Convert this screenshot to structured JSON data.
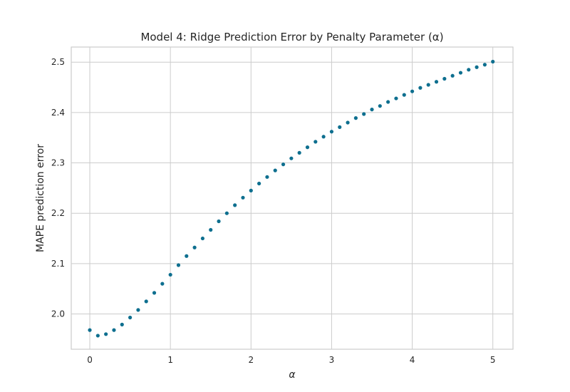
{
  "chart_data": {
    "type": "scatter",
    "title": "Model 4: Ridge Prediction Error by Penalty Parameter (α)",
    "xlabel": "α",
    "ylabel": "MAPE prediction error",
    "xlim": [
      -0.23,
      5.25
    ],
    "ylim": [
      1.93,
      2.53
    ],
    "xticks": [
      0,
      1,
      2,
      3,
      4,
      5
    ],
    "xtick_labels": [
      "0",
      "1",
      "2",
      "3",
      "4",
      "5"
    ],
    "yticks": [
      2.0,
      2.1,
      2.2,
      2.3,
      2.4,
      2.5
    ],
    "ytick_labels": [
      "2.0",
      "2.1",
      "2.2",
      "2.3",
      "2.4",
      "2.5"
    ],
    "grid": true,
    "legend": "none",
    "marker_color": "#0e6f8f",
    "series": [
      {
        "x": [
          0.0,
          0.1,
          0.2,
          0.3,
          0.4,
          0.5,
          0.6,
          0.7,
          0.8,
          0.9,
          1.0,
          1.1,
          1.2,
          1.3,
          1.4,
          1.5,
          1.6,
          1.7,
          1.8,
          1.9,
          2.0,
          2.1,
          2.2,
          2.3,
          2.4,
          2.5,
          2.6,
          2.7,
          2.8,
          2.9,
          3.0,
          3.1,
          3.2,
          3.3,
          3.4,
          3.5,
          3.6,
          3.7,
          3.8,
          3.9,
          4.0,
          4.1,
          4.2,
          4.3,
          4.4,
          4.5,
          4.6,
          4.7,
          4.8,
          4.9,
          5.0
        ],
        "y": [
          1.968,
          1.957,
          1.96,
          1.968,
          1.979,
          1.993,
          2.008,
          2.025,
          2.042,
          2.06,
          2.078,
          2.097,
          2.115,
          2.132,
          2.15,
          2.167,
          2.184,
          2.2,
          2.216,
          2.231,
          2.245,
          2.259,
          2.272,
          2.285,
          2.297,
          2.309,
          2.32,
          2.331,
          2.342,
          2.352,
          2.362,
          2.371,
          2.38,
          2.389,
          2.397,
          2.406,
          2.413,
          2.421,
          2.428,
          2.435,
          2.442,
          2.449,
          2.455,
          2.461,
          2.467,
          2.473,
          2.479,
          2.485,
          2.49,
          2.495,
          2.501
        ]
      }
    ]
  }
}
